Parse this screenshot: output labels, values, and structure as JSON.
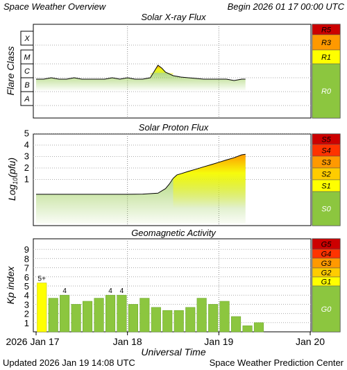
{
  "header": {
    "title": "Space Weather Overview",
    "begin": "Begin 2026 01 17 00:00 UTC"
  },
  "footer": {
    "updated": "Updated 2026 Jan 19 14:08 UTC",
    "credit": "Space Weather Prediction Center"
  },
  "x_axis": {
    "label": "Universal Time",
    "ticks": [
      "2026 Jan 17",
      "Jan 18",
      "Jan 19",
      "Jan 20"
    ]
  },
  "colors": {
    "green": "#8cc63f",
    "yellow": "#ffff00",
    "gold": "#ffcc00",
    "orange": "#ff9900",
    "red_orange": "#ff3300",
    "dark_red": "#cc0000"
  },
  "chart_data": [
    {
      "type": "area",
      "title": "Solar X-ray Flux",
      "ylabel": "Flare Class",
      "y_classes": [
        "X",
        "M",
        "C",
        "B",
        "A"
      ],
      "scale_labels": [
        "R5",
        "R3",
        "R1",
        "R0"
      ],
      "x_range_hours": [
        0,
        72
      ],
      "x_hours": [
        0,
        2,
        4,
        6,
        8,
        10,
        12,
        14,
        16,
        18,
        20,
        22,
        24,
        26,
        28,
        30,
        32,
        33,
        34,
        36,
        38,
        40,
        42,
        44,
        46,
        48,
        50,
        52,
        54,
        55
      ],
      "log_flux": [
        -6.1,
        -6.1,
        -6.0,
        -6.1,
        -6.1,
        -6.0,
        -6.1,
        -6.1,
        -6.1,
        -6.1,
        -6.0,
        -6.1,
        -6.0,
        -6.1,
        -6.1,
        -6.0,
        -5.1,
        -5.3,
        -5.6,
        -5.85,
        -5.95,
        -6.0,
        -6.05,
        -6.1,
        -6.1,
        -6.1,
        -6.1,
        -6.2,
        -6.1,
        -6.1
      ]
    },
    {
      "type": "area",
      "title": "Solar Proton Flux",
      "ylabel": "Log10(pfu)",
      "y_ticks": [
        1,
        2,
        3,
        4,
        5
      ],
      "scale_labels": [
        "S5",
        "S4",
        "S3",
        "S2",
        "S1",
        "S0"
      ],
      "x_range_hours": [
        0,
        72
      ],
      "x_hours": [
        0,
        4,
        8,
        12,
        16,
        20,
        24,
        28,
        32,
        34,
        35,
        36,
        37,
        38,
        40,
        42,
        44,
        46,
        48,
        50,
        52,
        54,
        55
      ],
      "log_pfu": [
        -0.3,
        -0.3,
        -0.3,
        -0.3,
        -0.3,
        -0.3,
        -0.3,
        -0.28,
        -0.2,
        0.2,
        0.6,
        1.1,
        1.4,
        1.5,
        1.7,
        1.9,
        2.1,
        2.3,
        2.5,
        2.7,
        2.9,
        3.15,
        3.2
      ]
    },
    {
      "type": "bar",
      "title": "Geomagnetic Activity",
      "ylabel": "Kp index",
      "y_ticks": [
        1,
        2,
        3,
        4,
        5,
        6,
        7,
        8,
        9
      ],
      "scale_labels": [
        "G5",
        "G4",
        "G3",
        "G2",
        "G1",
        "G0"
      ],
      "bar_width_hours": 3,
      "values": [
        5.33,
        3.67,
        4.0,
        3.0,
        3.33,
        3.67,
        4.0,
        4.0,
        3.0,
        3.67,
        2.67,
        2.33,
        2.33,
        2.67,
        3.67,
        3.0,
        3.33,
        1.67,
        0.67,
        1.0
      ],
      "bar_labels": [
        {
          "index": 0,
          "text": "5+"
        },
        {
          "index": 2,
          "text": "4"
        },
        {
          "index": 6,
          "text": "4"
        },
        {
          "index": 7,
          "text": "4"
        }
      ]
    }
  ]
}
